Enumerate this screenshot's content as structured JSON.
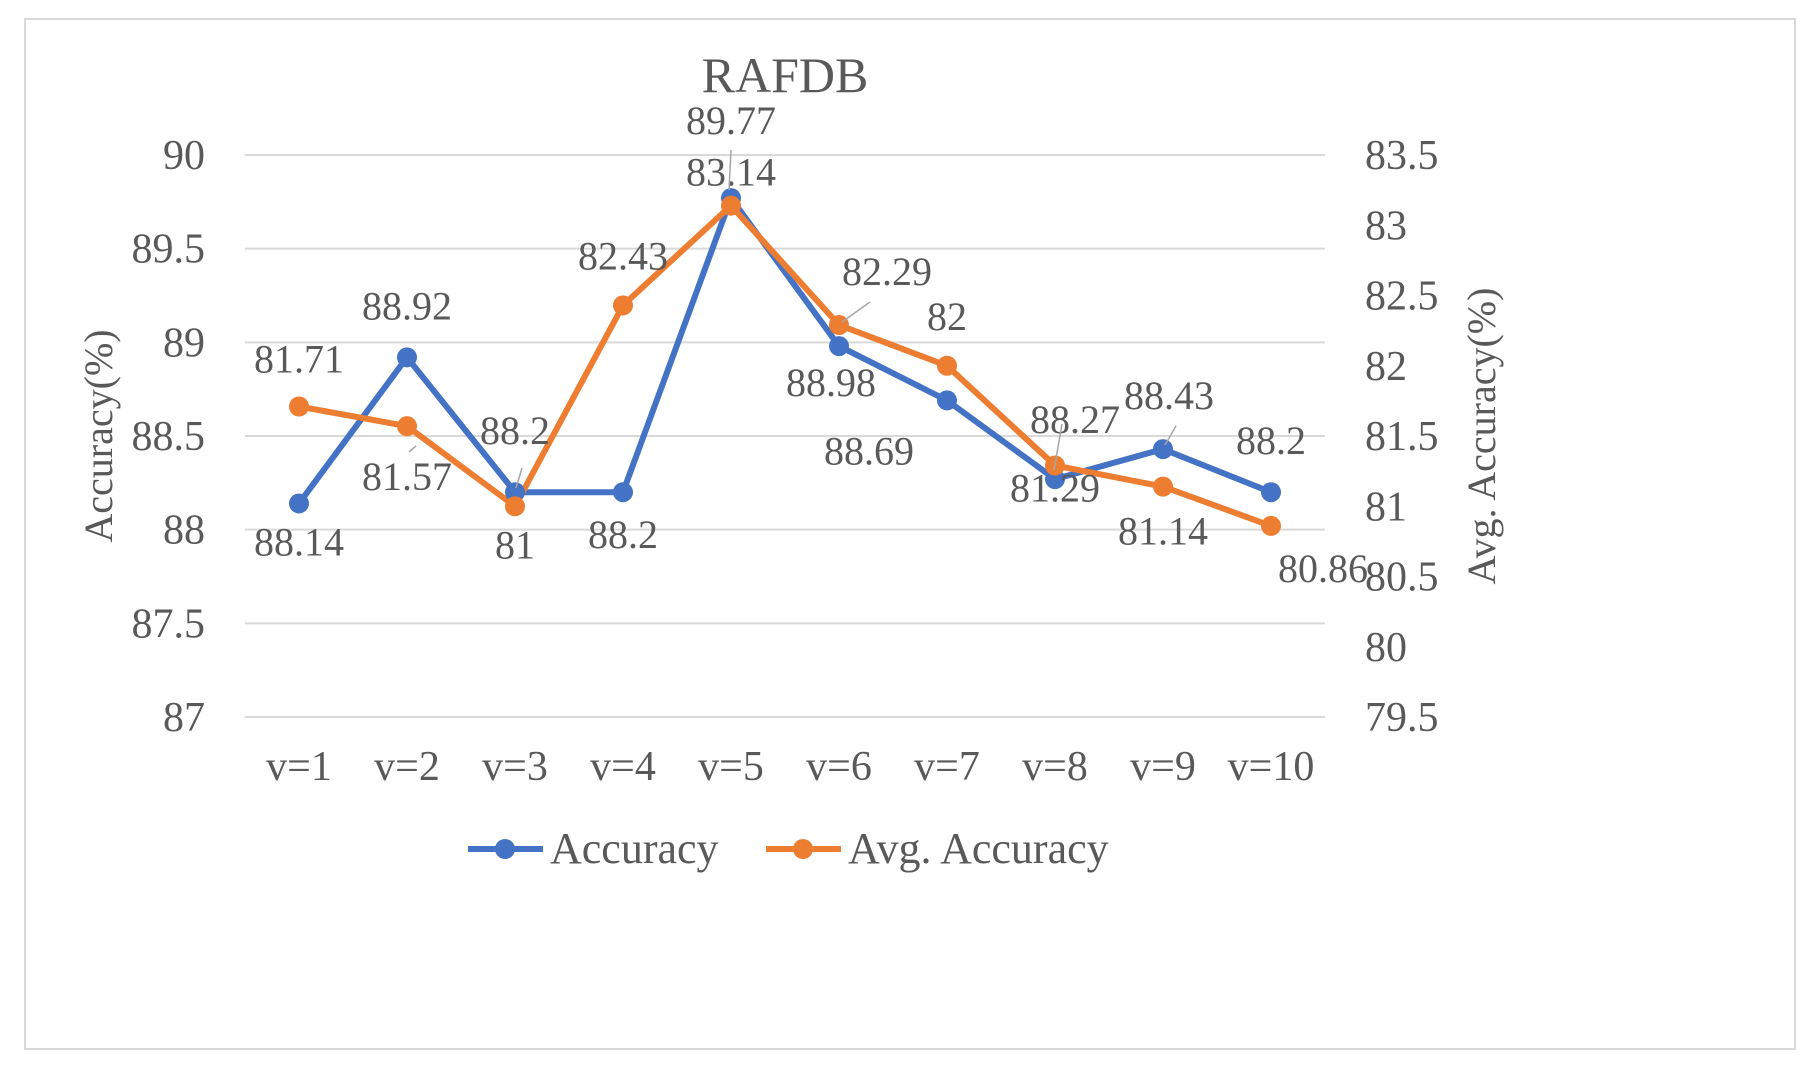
{
  "chart_data": {
    "type": "line",
    "title": "RAFDB",
    "categories": [
      "v=1",
      "v=2",
      "v=3",
      "v=4",
      "v=5",
      "v=6",
      "v=7",
      "v=8",
      "v=9",
      "v=10"
    ],
    "series": [
      {
        "name": "Accuracy",
        "axis": "left",
        "color": "#4472C4",
        "values": [
          88.14,
          88.92,
          88.2,
          88.2,
          89.77,
          88.98,
          88.69,
          88.27,
          88.43,
          88.2
        ],
        "labels": [
          "88.14",
          "88.92",
          "88.2",
          "88.2",
          "89.77",
          "88.98",
          "88.69",
          "88.27",
          "88.43",
          "88.2"
        ]
      },
      {
        "name": "Avg. Accuracy",
        "axis": "right",
        "color": "#ED7D31",
        "values": [
          81.71,
          81.57,
          81,
          82.43,
          83.14,
          82.29,
          82,
          81.29,
          81.14,
          80.86
        ],
        "labels": [
          "81.71",
          "81.57",
          "81",
          "82.43",
          "83.14",
          "82.29",
          "82",
          "81.29",
          "81.14",
          "80.86"
        ]
      }
    ],
    "ylabel": "Accuracy(%)",
    "y2label": "Avg. Accuracy(%)",
    "ylim": [
      87,
      90
    ],
    "yticks": [
      "87",
      "87.5",
      "88",
      "88.5",
      "89",
      "89.5",
      "90"
    ],
    "y2lim": [
      79.5,
      83.5
    ],
    "y2ticks": [
      "79.5",
      "80",
      "80.5",
      "81",
      "81.5",
      "82",
      "82.5",
      "83",
      "83.5"
    ],
    "grid": true,
    "legend_position": "bottom"
  }
}
